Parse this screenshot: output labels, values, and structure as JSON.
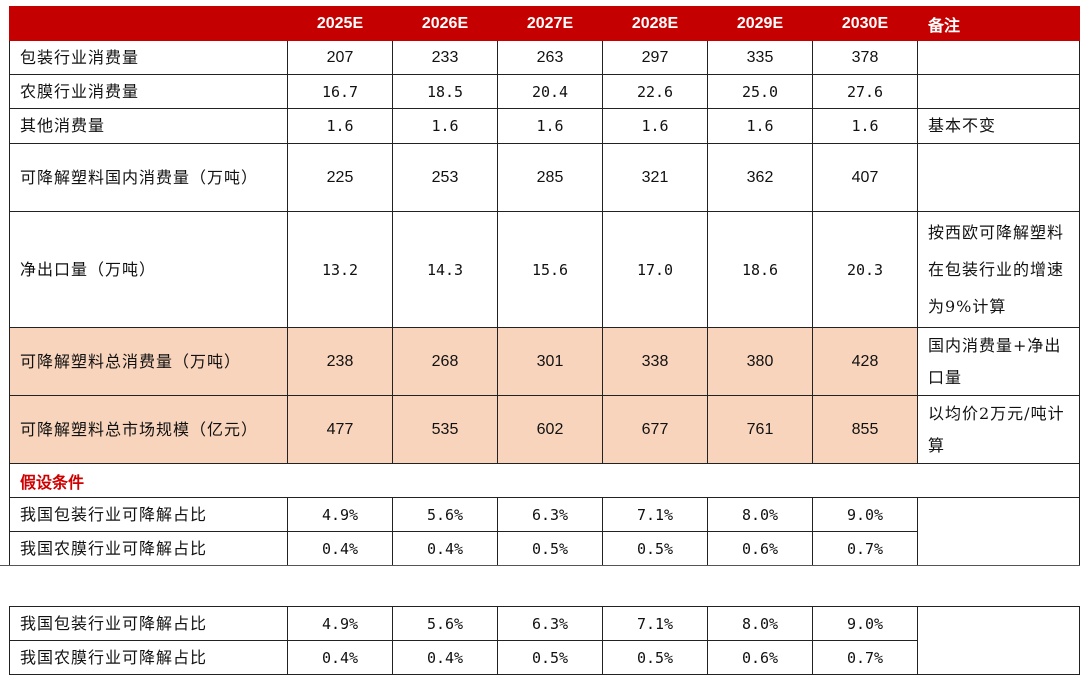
{
  "header": {
    "blank": "",
    "years": [
      "2025E",
      "2026E",
      "2027E",
      "2028E",
      "2029E",
      "2030E"
    ],
    "note": "备注"
  },
  "rows": [
    {
      "label": "包装行业消费量",
      "values": [
        "207",
        "233",
        "263",
        "297",
        "335",
        "378"
      ],
      "note": ""
    },
    {
      "label": "农膜行业消费量",
      "values": [
        "16.7",
        "18.5",
        "20.4",
        "22.6",
        "25.0",
        "27.6"
      ],
      "note": ""
    },
    {
      "label": "其他消费量",
      "values": [
        "1.6",
        "1.6",
        "1.6",
        "1.6",
        "1.6",
        "1.6"
      ],
      "note": "基本不变"
    },
    {
      "label": "可降解塑料国内消费量（万吨）",
      "values": [
        "225",
        "253",
        "285",
        "321",
        "362",
        "407"
      ],
      "note": ""
    },
    {
      "label": "净出口量（万吨）",
      "values": [
        "13.2",
        "14.3",
        "15.6",
        "17.0",
        "18.6",
        "20.3"
      ],
      "note": "按西欧可降解塑料在包装行业的增速为9%计算"
    },
    {
      "label": "可降解塑料总消费量（万吨）",
      "values": [
        "238",
        "268",
        "301",
        "338",
        "380",
        "428"
      ],
      "note": "国内消费量+净出口量"
    },
    {
      "label": "可降解塑料总市场规模（亿元）",
      "values": [
        "477",
        "535",
        "602",
        "677",
        "761",
        "855"
      ],
      "note": "以均价2万元/吨计算"
    }
  ],
  "conditions_title": "假设条件",
  "conditions": [
    {
      "label": "我国包装行业可降解占比",
      "values": [
        "4.9%",
        "5.6%",
        "6.3%",
        "7.1%",
        "8.0%",
        "9.0%"
      ]
    },
    {
      "label": "我国农膜行业可降解占比",
      "values": [
        "0.4%",
        "0.4%",
        "0.5%",
        "0.5%",
        "0.6%",
        "0.7%"
      ]
    }
  ],
  "repeat": [
    {
      "label": "我国包装行业可降解占比",
      "values": [
        "4.9%",
        "5.6%",
        "6.3%",
        "7.1%",
        "8.0%",
        "9.0%"
      ]
    },
    {
      "label": "我国农膜行业可降解占比",
      "values": [
        "0.4%",
        "0.4%",
        "0.5%",
        "0.5%",
        "0.6%",
        "0.7%"
      ]
    }
  ],
  "colors": {
    "header_bg": "#c40000",
    "highlight_bg": "#f9d4bc",
    "condition_text": "#d00000"
  }
}
